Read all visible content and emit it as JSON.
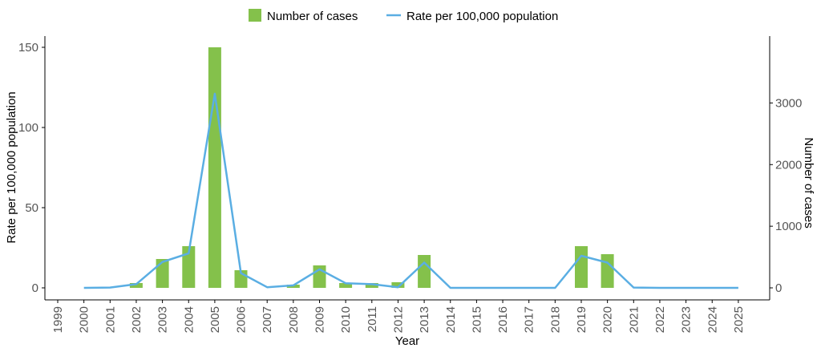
{
  "chart_data": {
    "type": "bar+line",
    "legend": {
      "position": "top",
      "items": [
        {
          "label": "Number of cases",
          "kind": "bar",
          "color": "#84c14b"
        },
        {
          "label": "Rate per 100,000 population",
          "kind": "line",
          "color": "#5aaee3"
        }
      ]
    },
    "xlabel": "Year",
    "ylabel_left": "Rate per 100,000 population",
    "ylabel_right": "Number of cases",
    "categories": [
      "1999",
      "2000",
      "2001",
      "2002",
      "2003",
      "2004",
      "2005",
      "2006",
      "2007",
      "2008",
      "2009",
      "2010",
      "2011",
      "2012",
      "2013",
      "2014",
      "2015",
      "2016",
      "2017",
      "2018",
      "2019",
      "2020",
      "2021",
      "2022",
      "2023",
      "2024",
      "2025"
    ],
    "left_axis": {
      "ylim": [
        -7.5,
        157
      ],
      "ticks": [
        0,
        50,
        100,
        150
      ]
    },
    "right_axis": {
      "ylim": [
        -195,
        4085
      ],
      "ticks": [
        0,
        1000,
        2000,
        3000
      ]
    },
    "series": [
      {
        "name": "Number of cases",
        "type": "bar",
        "axis": "left",
        "color": "#84c14b",
        "values": [
          0,
          0,
          0,
          3,
          18,
          26,
          150,
          11,
          0,
          2,
          14,
          3,
          3,
          3.5,
          20.5,
          0,
          0,
          0,
          0,
          0,
          26,
          21,
          0,
          0,
          0,
          0,
          0
        ]
      },
      {
        "name": "Rate per 100,000 population",
        "type": "line",
        "axis": "right",
        "color": "#5aaee3",
        "values": [
          null,
          0,
          5,
          60,
          420,
          560,
          3150,
          240,
          10,
          40,
          300,
          75,
          60,
          10,
          410,
          0,
          0,
          0,
          0,
          0,
          520,
          410,
          5,
          0,
          0,
          0,
          0
        ]
      }
    ],
    "grid": false
  }
}
